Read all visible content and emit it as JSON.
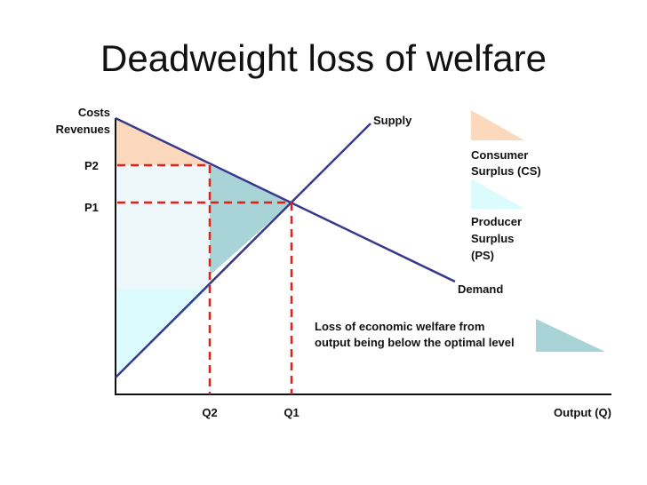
{
  "title": "Deadweight loss of welfare",
  "axes": {
    "y_label_line1": "Costs",
    "y_label_line2": "Revenues",
    "x_label": "Output (Q)"
  },
  "curves": {
    "supply": "Supply",
    "demand": "Demand"
  },
  "prices": {
    "p1": "P1",
    "p2": "P2"
  },
  "quantities": {
    "q1": "Q1",
    "q2": "Q2"
  },
  "legend": {
    "consumer_surplus": [
      "Consumer",
      "Surplus (CS)"
    ],
    "producer_surplus": [
      "Producer",
      "Surplus",
      "(PS)"
    ],
    "deadweight_loss": [
      "Loss of economic welfare from",
      "output being below the optimal level"
    ]
  },
  "colors": {
    "curve": "#3a3a8c",
    "dashed": "#e0201b",
    "consumer_surplus": "#fcd9bc",
    "producer_surplus": "#dcfbfd",
    "deadweight_loss": "#a8d4d8",
    "transfer_area": "#eef7f9"
  }
}
